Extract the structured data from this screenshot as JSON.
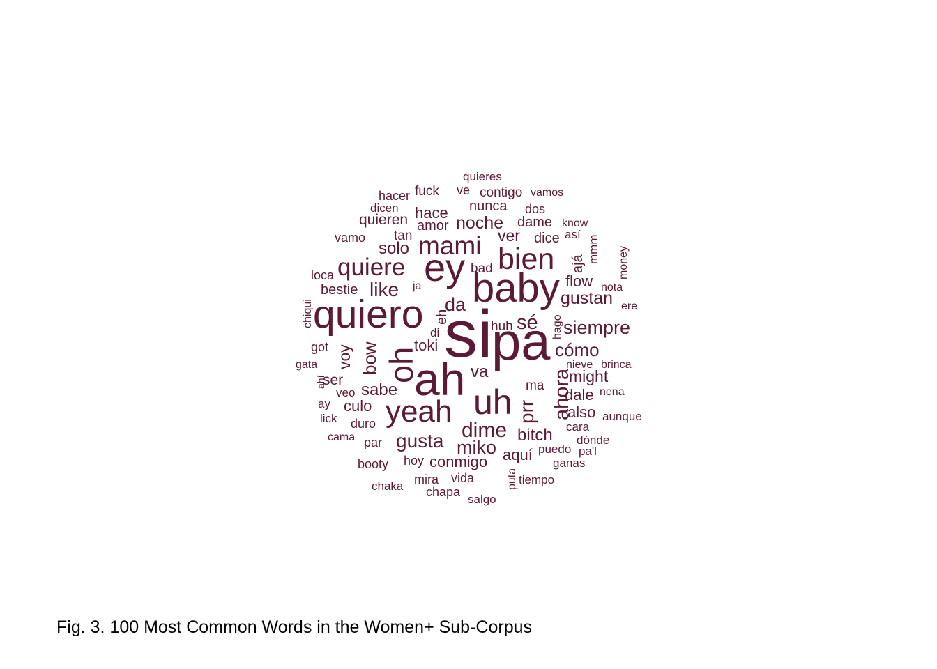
{
  "caption": "Fig. 3. 100 Most Common Words in the Women+ Sub-Corpus",
  "word_color": "#5b1a35",
  "words": [
    "si",
    "pa",
    "ah",
    "ey",
    "baby",
    "quiero",
    "oh",
    "uh",
    "yeah",
    "bien",
    "mami",
    "quiere",
    "gusta",
    "dime",
    "miko",
    "ahora",
    "prr",
    "sé",
    "like",
    "da",
    "siempre",
    "cómo",
    "noche",
    "solo",
    "bow",
    "sabe",
    "bitch",
    "gustan",
    "conmigo",
    "might",
    "dale",
    "also",
    "toki",
    "voy",
    "va",
    "ver",
    "aquí",
    "hace",
    "flow",
    "quieren",
    "culo",
    "ser",
    "bestie",
    "nunca",
    "amor",
    "dame",
    "dice",
    "contigo",
    "ajá",
    "fuck",
    "hacer",
    "quieres",
    "ve",
    "vamos",
    "dos",
    "dicen",
    "tan",
    "vamo",
    "know",
    "así",
    "mmm",
    "money",
    "loca",
    "bad",
    "ja",
    "nota",
    "ere",
    "chiqui",
    "eh",
    "huh",
    "hago",
    "di",
    "got",
    "nieve",
    "brinca",
    "gata",
    "ahí",
    "veo",
    "ma",
    "nena",
    "ay",
    "duro",
    "aunque",
    "lick",
    "cara",
    "cama",
    "par",
    "dónde",
    "puedo",
    "pa'l",
    "hoy",
    "booty",
    "ganas",
    "puta",
    "mira",
    "vida",
    "tiempo",
    "chaka",
    "chapa",
    "salgo"
  ]
}
